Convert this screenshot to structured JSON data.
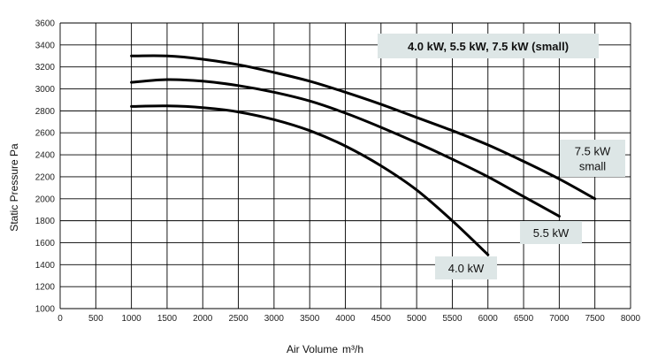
{
  "chart_data": {
    "type": "line",
    "legend_title": "4.0 kW, 5.5 kW, 7.5 kW (small)",
    "xlabel": "Air Volume",
    "xlabel_unit": "m³/h",
    "ylabel": "Static Pressure Pa",
    "xlim": [
      0,
      8000
    ],
    "ylim": [
      1000,
      3600
    ],
    "x_ticks": [
      0,
      500,
      1000,
      1500,
      2000,
      2500,
      3000,
      3500,
      4000,
      4500,
      5000,
      5500,
      6000,
      6500,
      7000,
      7500,
      8000
    ],
    "y_ticks": [
      1000,
      1200,
      1400,
      1600,
      1800,
      2000,
      2200,
      2400,
      2600,
      2800,
      3000,
      3200,
      3400,
      3600
    ],
    "grid": true,
    "series": [
      {
        "name": "4.0 kW",
        "label_lines": [
          "4.0 kW"
        ],
        "x": [
          1000,
          1500,
          2000,
          2500,
          3000,
          3500,
          4000,
          4500,
          5000,
          5500,
          6000
        ],
        "y": [
          2840,
          2845,
          2830,
          2790,
          2720,
          2620,
          2480,
          2300,
          2080,
          1800,
          1490
        ]
      },
      {
        "name": "5.5 kW",
        "label_lines": [
          "5.5 kW"
        ],
        "x": [
          1000,
          1500,
          2000,
          2500,
          3000,
          3500,
          4000,
          4500,
          5000,
          5500,
          6000,
          6500,
          7000
        ],
        "y": [
          3060,
          3085,
          3070,
          3030,
          2970,
          2890,
          2780,
          2650,
          2510,
          2360,
          2200,
          2020,
          1840
        ]
      },
      {
        "name": "7.5 kW small",
        "label_lines": [
          "7.5 kW",
          "small"
        ],
        "x": [
          1000,
          1500,
          2000,
          2500,
          3000,
          3500,
          4000,
          4500,
          5000,
          5500,
          6000,
          6500,
          7000,
          7500
        ],
        "y": [
          3300,
          3300,
          3270,
          3220,
          3150,
          3070,
          2970,
          2860,
          2740,
          2620,
          2490,
          2340,
          2180,
          2000
        ]
      }
    ]
  }
}
